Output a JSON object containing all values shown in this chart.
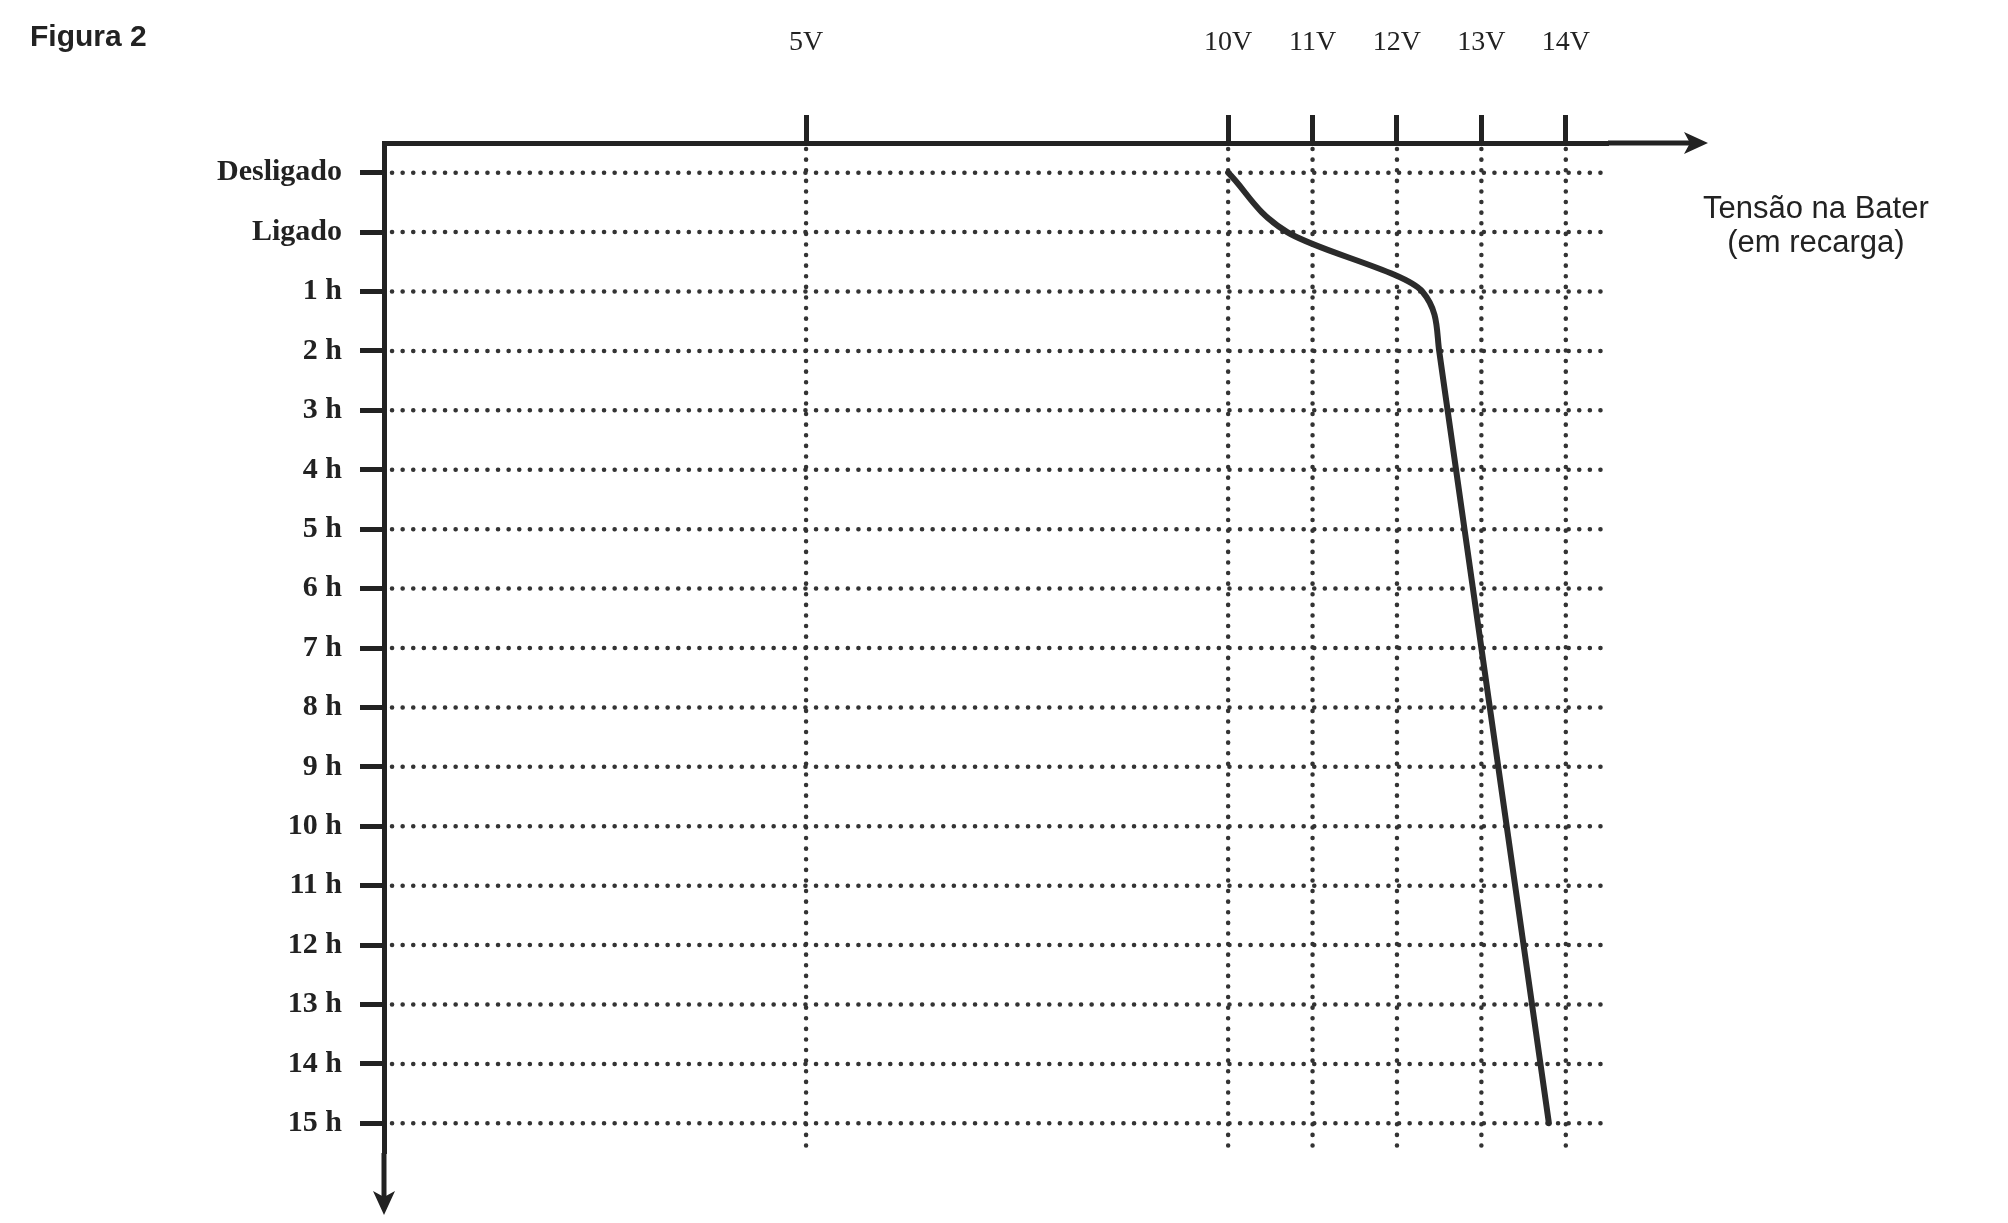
{
  "chart_data": {
    "type": "line",
    "title": "Figura 2",
    "xlabel": "Tensão na Bater\n(em recarga)",
    "orientation": "horizontal",
    "categories": [
      "Desligado",
      "Ligado",
      "1 h",
      "2 h",
      "3 h",
      "4 h",
      "5 h",
      "6 h",
      "7 h",
      "8 h",
      "9 h",
      "10 h",
      "11 h",
      "12 h",
      "13 h",
      "14 h",
      "15 h"
    ],
    "values": [
      10.0,
      10.7,
      12.3,
      12.5,
      12.6,
      12.7,
      12.8,
      12.9,
      13.0,
      13.1,
      13.2,
      13.3,
      13.4,
      13.5,
      13.6,
      13.7,
      13.8
    ],
    "color": "#2b2b2b",
    "xlim": [
      0,
      14.5
    ],
    "xticks": [
      {
        "value": 5,
        "label": "5V"
      },
      {
        "value": 10,
        "label": "10V"
      },
      {
        "value": 11,
        "label": "11V"
      },
      {
        "value": 12,
        "label": "12V"
      },
      {
        "value": 13,
        "label": "13V"
      },
      {
        "value": 14,
        "label": "14V"
      }
    ],
    "grid": true,
    "marker": "none"
  }
}
